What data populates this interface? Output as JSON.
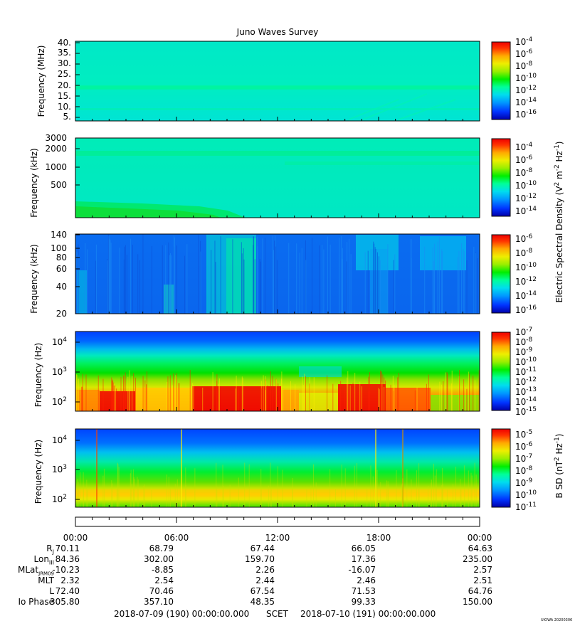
{
  "title": "Juno Waves Survey",
  "footer": {
    "start": "2018-07-09 (190) 00:00:00.000",
    "scet": "SCET",
    "end": "2018-07-10 (191) 00:00:00.000",
    "stamp": "UIOWA 20200306"
  },
  "colors": {
    "scale": [
      "#0000aa",
      "#0033ff",
      "#0099ff",
      "#00ddee",
      "#00ff99",
      "#00ee00",
      "#99ee00",
      "#eeee00",
      "#ffaa00",
      "#ff3300",
      "#ee0000"
    ]
  },
  "chart_data": [
    {
      "type": "heatmap",
      "panel": "hfr-high",
      "ylabel": "Frequency (MHz)",
      "yticks": [
        "5.",
        "10.",
        "15.",
        "20.",
        "25.",
        "30.",
        "35.",
        "40."
      ],
      "ylim": [
        3.5,
        41
      ],
      "colorbar_ticks": [
        "10-4",
        "10-6",
        "10-8",
        "10-10",
        "10-12",
        "10-14",
        "10-16"
      ],
      "colorbar_range": [
        -17,
        -4
      ],
      "features": [
        {
          "kind": "band",
          "from": 20.5,
          "to": 22,
          "level": 0.45
        },
        {
          "kind": "band",
          "from": 8.5,
          "to": 9.2,
          "level": 0.38
        }
      ],
      "base_level": 0.33
    },
    {
      "type": "heatmap",
      "panel": "hfr-low",
      "ylabel": "Frequency (kHz)",
      "yticks": [
        "500",
        "1000",
        "2000",
        "3000"
      ],
      "colorbar_ticks": [
        "10-4",
        "10-6",
        "10-8",
        "10-10",
        "10-12",
        "10-14"
      ],
      "colorbar_range": [
        -15,
        -3.5
      ],
      "features": [
        {
          "kind": "band",
          "from": 1650,
          "to": 1800,
          "level": 0.4
        },
        {
          "kind": "band",
          "from": 1100,
          "to": 1180,
          "level": 0.37
        }
      ],
      "base_level": 0.33
    },
    {
      "type": "heatmap",
      "panel": "lfr",
      "ylabel": "Frequency (kHz)",
      "yticks": [
        "20",
        "40",
        "60",
        "80",
        "100",
        "140"
      ],
      "colorbar_ticks": [
        "10-6",
        "10-8",
        "10-10",
        "10-12",
        "10-14",
        "10-16"
      ],
      "colorbar_range": [
        -17,
        -5.5
      ],
      "base_level": 0.14
    },
    {
      "type": "heatmap",
      "panel": "efield-low",
      "ylabel": "Frequency (Hz)",
      "yticks": [
        "10^2",
        "10^3",
        "10^4"
      ],
      "colorbar_ticks": [
        "10-7",
        "10-8",
        "10-9",
        "10-10",
        "10-11",
        "10-12",
        "10-13",
        "10-14",
        "10-15"
      ],
      "colorbar_range": [
        -15,
        -7
      ],
      "base_level": 0.2
    },
    {
      "type": "heatmap",
      "panel": "bfield",
      "ylabel": "B SD (nT2 Hz-1)",
      "yticks": [
        "10^2",
        "10^3",
        "10^4"
      ],
      "colorbar_ticks": [
        "10-5",
        "10-6",
        "10-7",
        "10-8",
        "10-9",
        "10-10",
        "10-11"
      ],
      "colorbar_range": [
        -11,
        -4.5
      ],
      "base_level": 0.15
    }
  ],
  "shared_colorbar_label": "Electric Spectral Density (V2 m-2 Hz-1)",
  "time_axis": {
    "ticks": [
      "00:00",
      "06:00",
      "12:00",
      "18:00",
      "00:00"
    ],
    "hours": [
      0,
      6,
      12,
      18,
      24
    ]
  },
  "ephemeris": [
    {
      "label": "Rj",
      "values": [
        "70.11",
        "68.79",
        "67.44",
        "66.05",
        "64.63"
      ]
    },
    {
      "label": "LonIII",
      "values": [
        "84.36",
        "302.00",
        "159.70",
        "17.36",
        "235.00"
      ]
    },
    {
      "label": "MLatJRM09",
      "values": [
        "-10.23",
        "-8.85",
        "2.26",
        "-16.07",
        "2.57"
      ]
    },
    {
      "label": "MLT",
      "values": [
        "2.32",
        "2.54",
        "2.44",
        "2.46",
        "2.51"
      ]
    },
    {
      "label": "L",
      "values": [
        "72.40",
        "70.46",
        "67.54",
        "71.53",
        "64.76"
      ]
    },
    {
      "label": "Io Phase",
      "values": [
        "305.80",
        "357.10",
        "48.35",
        "99.33",
        "150.00"
      ]
    }
  ]
}
